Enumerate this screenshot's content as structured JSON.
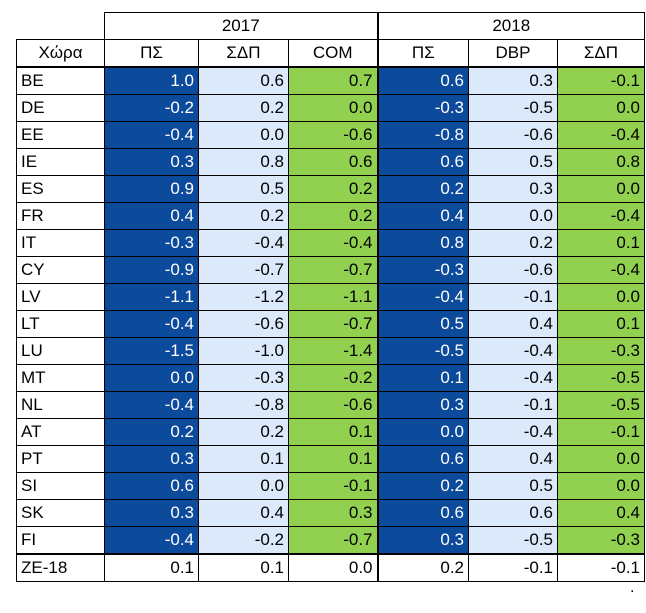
{
  "years": [
    "2017",
    "2018"
  ],
  "headers": {
    "country": "Χώρα",
    "cols": [
      "ΠΣ",
      "ΣΔΠ",
      "COM",
      "ΠΣ",
      "DBP",
      "ΣΔΠ"
    ]
  },
  "colors": {
    "dark_blue": "#0c4a9c",
    "light_blue": "#dbe9fa",
    "green": "#92d050"
  },
  "rows": [
    {
      "country": "BE",
      "values": [
        "1.0",
        "0.6",
        "0.7",
        "0.6",
        "0.3",
        "-0.1"
      ]
    },
    {
      "country": "DE",
      "values": [
        "-0.2",
        "0.2",
        "0.0",
        "-0.3",
        "-0.5",
        "0.0"
      ]
    },
    {
      "country": "EE",
      "values": [
        "-0.4",
        "0.0",
        "-0.6",
        "-0.8",
        "-0.6",
        "-0.4"
      ]
    },
    {
      "country": "IE",
      "values": [
        "0.3",
        "0.8",
        "0.6",
        "0.6",
        "0.5",
        "0.8"
      ]
    },
    {
      "country": "ES",
      "values": [
        "0.9",
        "0.5",
        "0.2",
        "0.2",
        "0.3",
        "0.0"
      ]
    },
    {
      "country": "FR",
      "values": [
        "0.4",
        "0.2",
        "0.2",
        "0.4",
        "0.0",
        "-0.4"
      ]
    },
    {
      "country": "IT",
      "values": [
        "-0.3",
        "-0.4",
        "-0.4",
        "0.8",
        "0.2",
        "0.1"
      ]
    },
    {
      "country": "CY",
      "values": [
        "-0.9",
        "-0.7",
        "-0.7",
        "-0.3",
        "-0.6",
        "-0.4"
      ]
    },
    {
      "country": "LV",
      "values": [
        "-1.1",
        "-1.2",
        "-1.1",
        "-0.4",
        "-0.1",
        "0.0"
      ]
    },
    {
      "country": "LT",
      "values": [
        "-0.4",
        "-0.6",
        "-0.7",
        "0.5",
        "0.4",
        "0.1"
      ]
    },
    {
      "country": "LU",
      "values": [
        "-1.5",
        "-1.0",
        "-1.4",
        "-0.5",
        "-0.4",
        "-0.3"
      ]
    },
    {
      "country": "MT",
      "values": [
        "0.0",
        "-0.3",
        "-0.2",
        "0.1",
        "-0.4",
        "-0.5"
      ]
    },
    {
      "country": "NL",
      "values": [
        "-0.4",
        "-0.8",
        "-0.6",
        "0.3",
        "-0.1",
        "-0.5"
      ]
    },
    {
      "country": "AT",
      "values": [
        "0.2",
        "0.2",
        "0.1",
        "0.0",
        "-0.4",
        "-0.1"
      ]
    },
    {
      "country": "PT",
      "values": [
        "0.3",
        "0.1",
        "0.1",
        "0.6",
        "0.4",
        "0.0"
      ]
    },
    {
      "country": "SI",
      "values": [
        "0.6",
        "0.0",
        "-0.1",
        "0.2",
        "0.5",
        "0.0"
      ]
    },
    {
      "country": "SK",
      "values": [
        "0.3",
        "0.4",
        "0.3",
        "0.6",
        "0.6",
        "0.4"
      ]
    },
    {
      "country": "FI",
      "values": [
        "-0.4",
        "-0.2",
        "-0.7",
        "0.3",
        "-0.5",
        "-0.3"
      ]
    }
  ],
  "total": {
    "country": "ZE-18",
    "values": [
      "0.1",
      "0.1",
      "0.0",
      "0.2",
      "-0.1",
      "-0.1"
    ]
  },
  "trailing_mark": "."
}
